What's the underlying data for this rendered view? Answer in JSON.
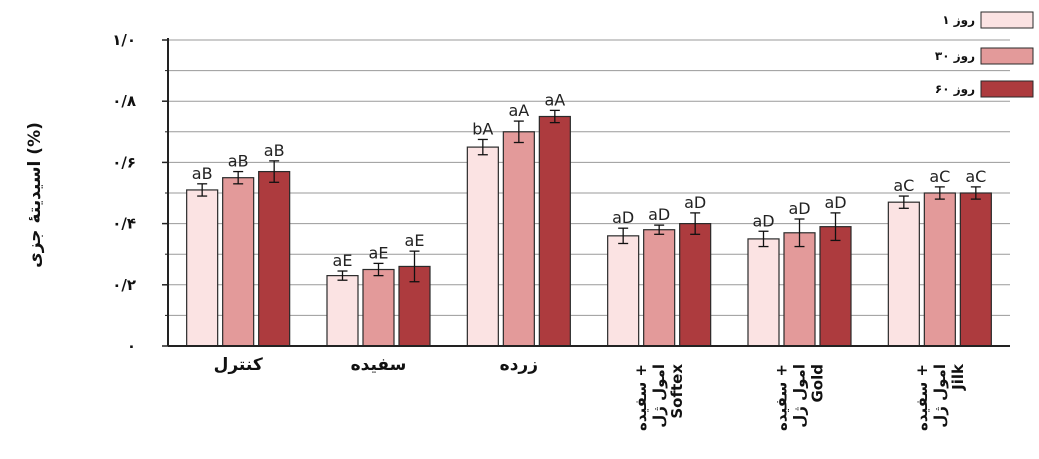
{
  "chart_data": {
    "type": "bar",
    "ylabel": "اسیدیتهٔ جزی (%)",
    "ylim": [
      0,
      1.0
    ],
    "ytick_values": [
      0,
      0.2,
      0.4,
      0.6,
      0.8,
      1.0
    ],
    "ytick_labels": [
      "۰",
      "۰/۲",
      "۰/۴",
      "۰/۶",
      "۰/۸",
      "۱/۰"
    ],
    "grid": true,
    "legend_position": "top-right",
    "colors": [
      "#fbe3e3",
      "#e39a9a",
      "#ad3b3e"
    ],
    "categories": [
      {
        "lines": [
          "کنترل"
        ],
        "vertical": false
      },
      {
        "lines": [
          "سفیده"
        ],
        "vertical": false
      },
      {
        "lines": [
          "زرده"
        ],
        "vertical": false
      },
      {
        "lines": [
          "سفیده +",
          "امول ژل",
          "Softex"
        ],
        "vertical": true
      },
      {
        "lines": [
          "سفیده +",
          "امول ژل",
          "Gold"
        ],
        "vertical": true
      },
      {
        "lines": [
          "سفیده +",
          "امول ژل",
          "Jilk"
        ],
        "vertical": true
      }
    ],
    "series": [
      {
        "name": "روز ۱",
        "values": [
          0.51,
          0.23,
          0.65,
          0.36,
          0.35,
          0.47
        ],
        "errors": [
          0.02,
          0.015,
          0.025,
          0.025,
          0.025,
          0.02
        ],
        "labels": [
          "aB",
          "aE",
          "bA",
          "aD",
          "aD",
          "aC"
        ]
      },
      {
        "name": "روز ۳۰",
        "values": [
          0.55,
          0.25,
          0.7,
          0.38,
          0.37,
          0.5
        ],
        "errors": [
          0.02,
          0.02,
          0.035,
          0.015,
          0.045,
          0.02
        ],
        "labels": [
          "aB",
          "aE",
          "aA",
          "aD",
          "aD",
          "aC"
        ]
      },
      {
        "name": "روز ۶۰",
        "values": [
          0.57,
          0.26,
          0.75,
          0.4,
          0.39,
          0.5
        ],
        "errors": [
          0.035,
          0.05,
          0.02,
          0.035,
          0.045,
          0.02
        ],
        "labels": [
          "aB",
          "aE",
          "aA",
          "aD",
          "aD",
          "aC"
        ]
      }
    ]
  }
}
